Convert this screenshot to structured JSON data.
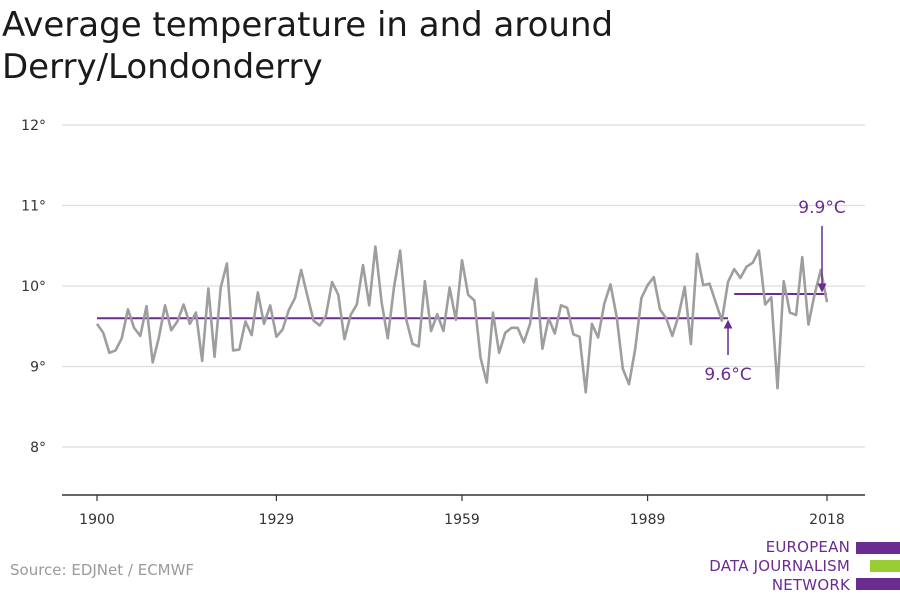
{
  "title_line1": "Average temperature in and around",
  "title_line2": "Derry/Londonderry",
  "source": "Source: EDJNet / ECMWF",
  "logo": {
    "line1": "EUROPEAN",
    "line2": "DATA JOURNALISM",
    "line3": "NETWORK",
    "bar_color_top": "#6a2c91",
    "bar_color_mid": "#9acd32",
    "bar_color_bottom": "#6a2c91"
  },
  "colors": {
    "series": "#9e9e9e",
    "accent": "#6a2c91",
    "grid": "#dddddd",
    "axis": "#333333"
  },
  "chart_data": {
    "type": "line",
    "title": "Average temperature in and around Derry/Londonderry",
    "xlabel": "",
    "ylabel": "",
    "xlim": [
      1900,
      2018
    ],
    "ylim": [
      8,
      12
    ],
    "yticks": [
      8,
      9,
      10,
      11,
      12
    ],
    "ytick_labels": [
      "8°",
      "9°",
      "10°",
      "11°",
      "12°"
    ],
    "xticks": [
      1900,
      1929,
      1959,
      1989,
      2018
    ],
    "xtick_labels": [
      "1900",
      "1929",
      "1959",
      "1989",
      "2018"
    ],
    "grid": true,
    "series": [
      {
        "x": [
          1900,
          1901,
          1902,
          1903,
          1904,
          1905,
          1906,
          1907,
          1908,
          1909,
          1910,
          1911,
          1912,
          1913,
          1914,
          1915,
          1916,
          1917,
          1918,
          1919,
          1920,
          1921,
          1922,
          1923,
          1924,
          1925,
          1926,
          1927,
          1928,
          1929,
          1930,
          1931,
          1932,
          1933,
          1934,
          1935,
          1936,
          1937,
          1938,
          1939,
          1940,
          1941,
          1942,
          1943,
          1944,
          1945,
          1946,
          1947,
          1948,
          1949,
          1950,
          1951,
          1952,
          1953,
          1954,
          1955,
          1956,
          1957,
          1958,
          1959,
          1960,
          1961,
          1962,
          1963,
          1964,
          1965,
          1966,
          1967,
          1968,
          1969,
          1970,
          1971,
          1972,
          1973,
          1974,
          1975,
          1976,
          1977,
          1978,
          1979,
          1980,
          1981,
          1982,
          1983,
          1984,
          1985,
          1986,
          1987,
          1988,
          1989,
          1990,
          1991,
          1992,
          1993,
          1994,
          1995,
          1996,
          1997,
          1998,
          1999,
          2000,
          2001,
          2002,
          2003,
          2004,
          2005,
          2006,
          2007,
          2008,
          2009,
          2010,
          2011,
          2012,
          2013,
          2014,
          2015,
          2016,
          2017,
          2018
        ],
        "values": [
          9.53,
          9.42,
          9.17,
          9.2,
          9.35,
          9.71,
          9.48,
          9.38,
          9.75,
          9.05,
          9.36,
          9.76,
          9.45,
          9.56,
          9.77,
          9.53,
          9.67,
          9.07,
          9.97,
          9.12,
          9.98,
          10.28,
          9.2,
          9.21,
          9.56,
          9.39,
          9.92,
          9.53,
          9.76,
          9.37,
          9.46,
          9.7,
          9.85,
          10.2,
          9.88,
          9.57,
          9.51,
          9.63,
          10.05,
          9.89,
          9.34,
          9.64,
          9.77,
          10.26,
          9.76,
          10.49,
          9.8,
          9.35,
          9.98,
          10.44,
          9.58,
          9.28,
          9.25,
          10.06,
          9.44,
          9.65,
          9.44,
          9.98,
          9.58,
          10.32,
          9.89,
          9.82,
          9.11,
          8.8,
          9.67,
          9.17,
          9.42,
          9.48,
          9.48,
          9.3,
          9.53,
          10.09,
          9.22,
          9.6,
          9.41,
          9.76,
          9.73,
          9.4,
          9.37,
          8.68,
          9.53,
          9.36,
          9.78,
          10.02,
          9.62,
          8.97,
          8.78,
          9.22,
          9.85,
          10.01,
          10.11,
          9.71,
          9.6,
          9.38,
          9.63,
          9.99,
          9.28,
          10.4,
          10.01,
          10.03,
          9.8,
          9.57,
          10.05,
          10.21,
          10.1,
          10.24,
          10.29,
          10.44,
          9.77,
          9.86,
          8.73,
          10.06,
          9.67,
          9.64,
          10.36,
          9.52,
          9.9,
          10.2,
          9.8
        ]
      }
    ],
    "averages": [
      {
        "label": "9.6°C",
        "value": 9.6,
        "x_start": 1900,
        "x_end": 2002
      },
      {
        "label": "9.9°C",
        "value": 9.9,
        "x_start": 2003,
        "x_end": 2018
      }
    ]
  }
}
